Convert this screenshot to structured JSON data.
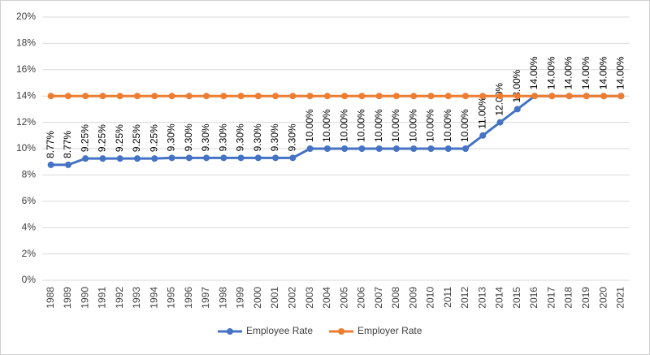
{
  "chart_data": {
    "type": "line",
    "categories": [
      "1988",
      "1989",
      "1990",
      "1991",
      "1992",
      "1993",
      "1994",
      "1995",
      "1996",
      "1997",
      "1998",
      "1999",
      "2000",
      "2001",
      "2002",
      "2003",
      "2004",
      "2005",
      "2006",
      "2007",
      "2008",
      "2009",
      "2010",
      "2011",
      "2012",
      "2013",
      "2014",
      "2015",
      "2016",
      "2017",
      "2018",
      "2019",
      "2020",
      "2021"
    ],
    "series": [
      {
        "name": "Employee Rate",
        "color": "#4472c4",
        "values": [
          8.77,
          8.77,
          9.25,
          9.25,
          9.25,
          9.25,
          9.25,
          9.3,
          9.3,
          9.3,
          9.3,
          9.3,
          9.3,
          9.3,
          9.3,
          10,
          10,
          10,
          10,
          10,
          10,
          10,
          10,
          10,
          10,
          11,
          12,
          13,
          14,
          14,
          14,
          14,
          14,
          14
        ],
        "value_labels": [
          "8.77%",
          "8.77%",
          "9.25%",
          "9.25%",
          "9.25%",
          "9.25%",
          "9.25%",
          "9.30%",
          "9.30%",
          "9.30%",
          "9.30%",
          "9.30%",
          "9.30%",
          "9.30%",
          "9.30%",
          "10.00%",
          "10.00%",
          "10.00%",
          "10.00%",
          "10.00%",
          "10.00%",
          "10.00%",
          "10.00%",
          "10.00%",
          "10.00%",
          "11.00%",
          "12.00%",
          "13.00%",
          "14.00%",
          "14.00%",
          "14.00%",
          "14.00%",
          "14.00%",
          "14.00%"
        ]
      },
      {
        "name": "Employer Rate",
        "color": "#ed7d31",
        "values": [
          14,
          14,
          14,
          14,
          14,
          14,
          14,
          14,
          14,
          14,
          14,
          14,
          14,
          14,
          14,
          14,
          14,
          14,
          14,
          14,
          14,
          14,
          14,
          14,
          14,
          14,
          14,
          14,
          14,
          14,
          14,
          14,
          14,
          14
        ]
      }
    ],
    "ylim": [
      0,
      20
    ],
    "yticks": [
      {
        "value": 0,
        "label": "0%"
      },
      {
        "value": 2,
        "label": "2%"
      },
      {
        "value": 4,
        "label": "4%"
      },
      {
        "value": 6,
        "label": "6%"
      },
      {
        "value": 8,
        "label": "8%"
      },
      {
        "value": 10,
        "label": "10%"
      },
      {
        "value": 12,
        "label": "12%"
      },
      {
        "value": 14,
        "label": "14%"
      },
      {
        "value": 16,
        "label": "16%"
      },
      {
        "value": 18,
        "label": "18%"
      },
      {
        "value": 20,
        "label": "20%"
      }
    ],
    "grid": true,
    "legend": "bottom"
  }
}
